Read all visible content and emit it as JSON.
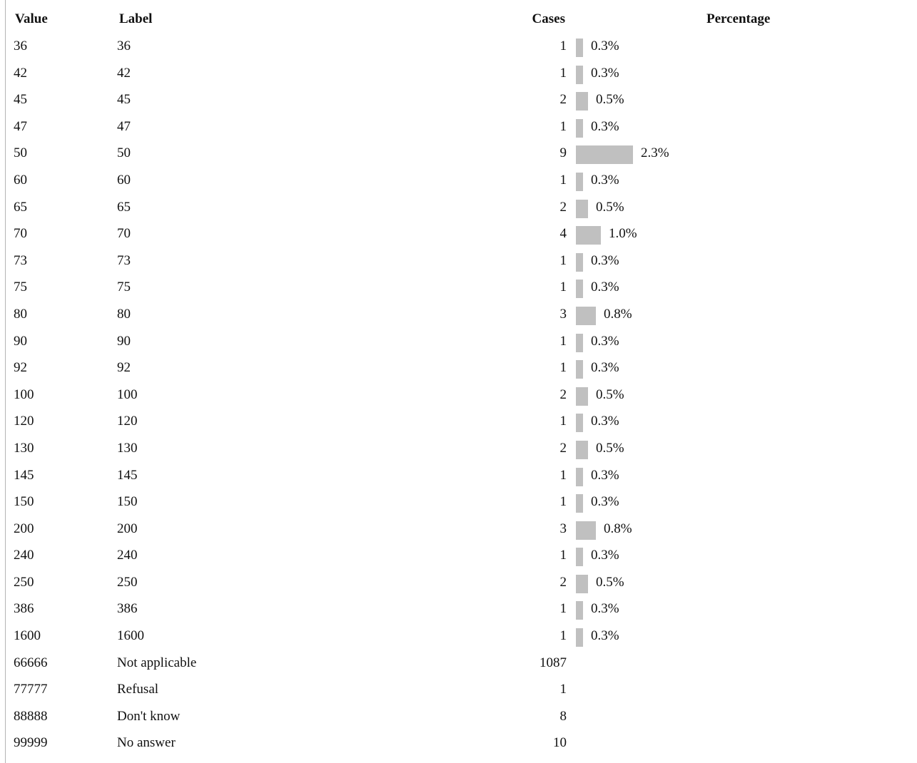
{
  "table": {
    "headers": {
      "value": "Value",
      "label": "Label",
      "cases": "Cases",
      "percentage": "Percentage"
    },
    "rows": [
      {
        "value": "36",
        "label": "36",
        "cases": "1",
        "percentage": "0.3%",
        "pct": 0.3
      },
      {
        "value": "42",
        "label": "42",
        "cases": "1",
        "percentage": "0.3%",
        "pct": 0.3
      },
      {
        "value": "45",
        "label": "45",
        "cases": "2",
        "percentage": "0.5%",
        "pct": 0.5
      },
      {
        "value": "47",
        "label": "47",
        "cases": "1",
        "percentage": "0.3%",
        "pct": 0.3
      },
      {
        "value": "50",
        "label": "50",
        "cases": "9",
        "percentage": "2.3%",
        "pct": 2.3
      },
      {
        "value": "60",
        "label": "60",
        "cases": "1",
        "percentage": "0.3%",
        "pct": 0.3
      },
      {
        "value": "65",
        "label": "65",
        "cases": "2",
        "percentage": "0.5%",
        "pct": 0.5
      },
      {
        "value": "70",
        "label": "70",
        "cases": "4",
        "percentage": "1.0%",
        "pct": 1.0
      },
      {
        "value": "73",
        "label": "73",
        "cases": "1",
        "percentage": "0.3%",
        "pct": 0.3
      },
      {
        "value": "75",
        "label": "75",
        "cases": "1",
        "percentage": "0.3%",
        "pct": 0.3
      },
      {
        "value": "80",
        "label": "80",
        "cases": "3",
        "percentage": "0.8%",
        "pct": 0.8
      },
      {
        "value": "90",
        "label": "90",
        "cases": "1",
        "percentage": "0.3%",
        "pct": 0.3
      },
      {
        "value": "92",
        "label": "92",
        "cases": "1",
        "percentage": "0.3%",
        "pct": 0.3
      },
      {
        "value": "100",
        "label": "100",
        "cases": "2",
        "percentage": "0.5%",
        "pct": 0.5
      },
      {
        "value": "120",
        "label": "120",
        "cases": "1",
        "percentage": "0.3%",
        "pct": 0.3
      },
      {
        "value": "130",
        "label": "130",
        "cases": "2",
        "percentage": "0.5%",
        "pct": 0.5
      },
      {
        "value": "145",
        "label": "145",
        "cases": "1",
        "percentage": "0.3%",
        "pct": 0.3
      },
      {
        "value": "150",
        "label": "150",
        "cases": "1",
        "percentage": "0.3%",
        "pct": 0.3
      },
      {
        "value": "200",
        "label": "200",
        "cases": "3",
        "percentage": "0.8%",
        "pct": 0.8
      },
      {
        "value": "240",
        "label": "240",
        "cases": "1",
        "percentage": "0.3%",
        "pct": 0.3
      },
      {
        "value": "250",
        "label": "250",
        "cases": "2",
        "percentage": "0.5%",
        "pct": 0.5
      },
      {
        "value": "386",
        "label": "386",
        "cases": "1",
        "percentage": "0.3%",
        "pct": 0.3
      },
      {
        "value": "1600",
        "label": "1600",
        "cases": "1",
        "percentage": "0.3%",
        "pct": 0.3
      },
      {
        "value": "66666",
        "label": "Not applicable",
        "cases": "1087",
        "percentage": "",
        "pct": null
      },
      {
        "value": "77777",
        "label": "Refusal",
        "cases": "1",
        "percentage": "",
        "pct": null
      },
      {
        "value": "88888",
        "label": "Don't know",
        "cases": "8",
        "percentage": "",
        "pct": null
      },
      {
        "value": "99999",
        "label": "No answer",
        "cases": "10",
        "percentage": "",
        "pct": null
      }
    ]
  },
  "colors": {
    "bar": "#c0c0c0",
    "rule": "#b4b4b4"
  }
}
